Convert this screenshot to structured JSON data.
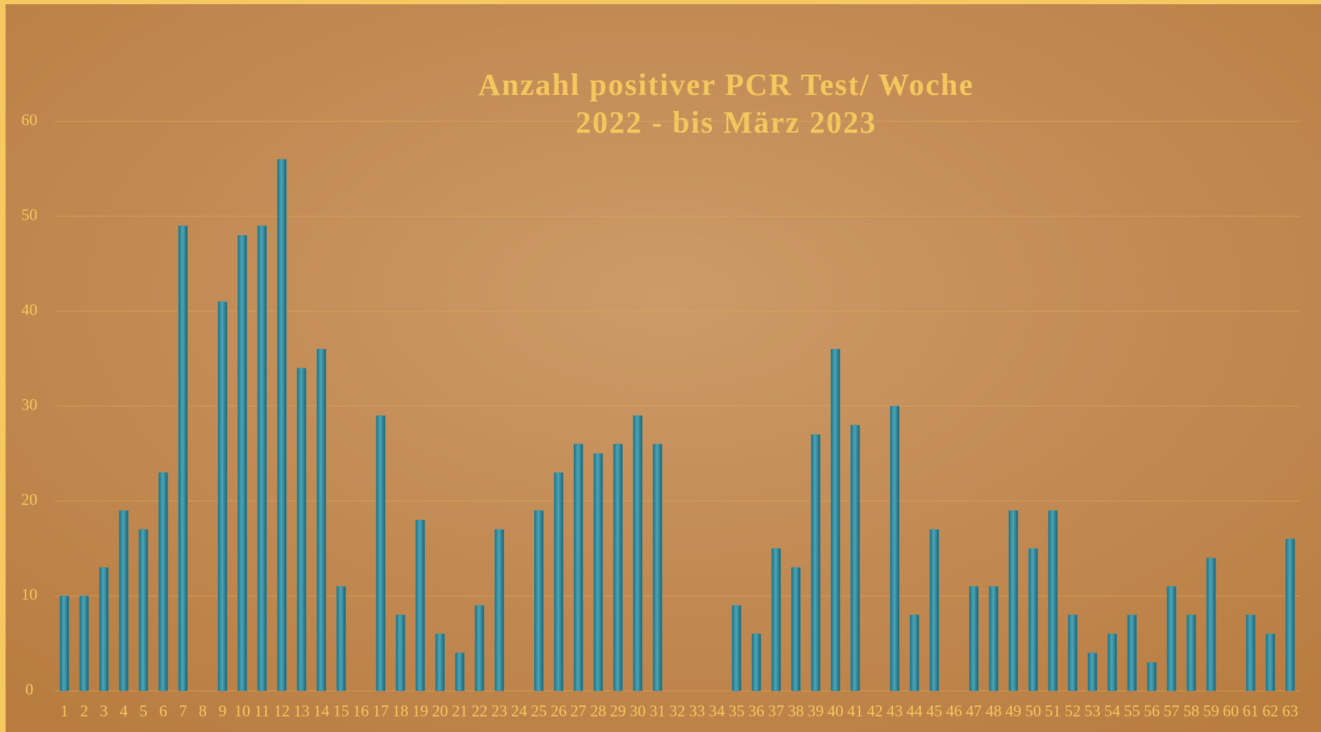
{
  "chart_data": {
    "type": "bar",
    "title": "Anzahl positiver PCR Test/ Woche",
    "subtitle": "2022 - bis März 2023",
    "categories": [
      "1",
      "2",
      "3",
      "4",
      "5",
      "6",
      "7",
      "8",
      "9",
      "10",
      "11",
      "12",
      "13",
      "14",
      "15",
      "16",
      "17",
      "18",
      "19",
      "20",
      "21",
      "22",
      "23",
      "24",
      "25",
      "26",
      "27",
      "28",
      "29",
      "30",
      "31",
      "32",
      "33",
      "34",
      "35",
      "36",
      "37",
      "38",
      "39",
      "40",
      "41",
      "42",
      "43",
      "44",
      "45",
      "46",
      "47",
      "48",
      "49",
      "50",
      "51",
      "52",
      "53",
      "54",
      "55",
      "56",
      "57",
      "58",
      "59",
      "60",
      "61",
      "62",
      "63"
    ],
    "values": [
      10,
      10,
      13,
      19,
      17,
      23,
      49,
      0,
      41,
      48,
      49,
      56,
      34,
      36,
      11,
      0,
      29,
      8,
      18,
      6,
      4,
      9,
      17,
      0,
      19,
      23,
      26,
      25,
      26,
      29,
      26,
      0,
      0,
      0,
      9,
      6,
      15,
      13,
      27,
      36,
      28,
      0,
      30,
      8,
      17,
      0,
      11,
      11,
      19,
      15,
      19,
      8,
      4,
      6,
      8,
      3,
      11,
      8,
      14,
      0,
      8,
      6,
      16
    ],
    "color": "#2f8ea3",
    "ylim": [
      0,
      60
    ],
    "yticks": [
      0,
      10,
      20,
      30,
      40,
      50,
      60
    ],
    "grid": true
  }
}
